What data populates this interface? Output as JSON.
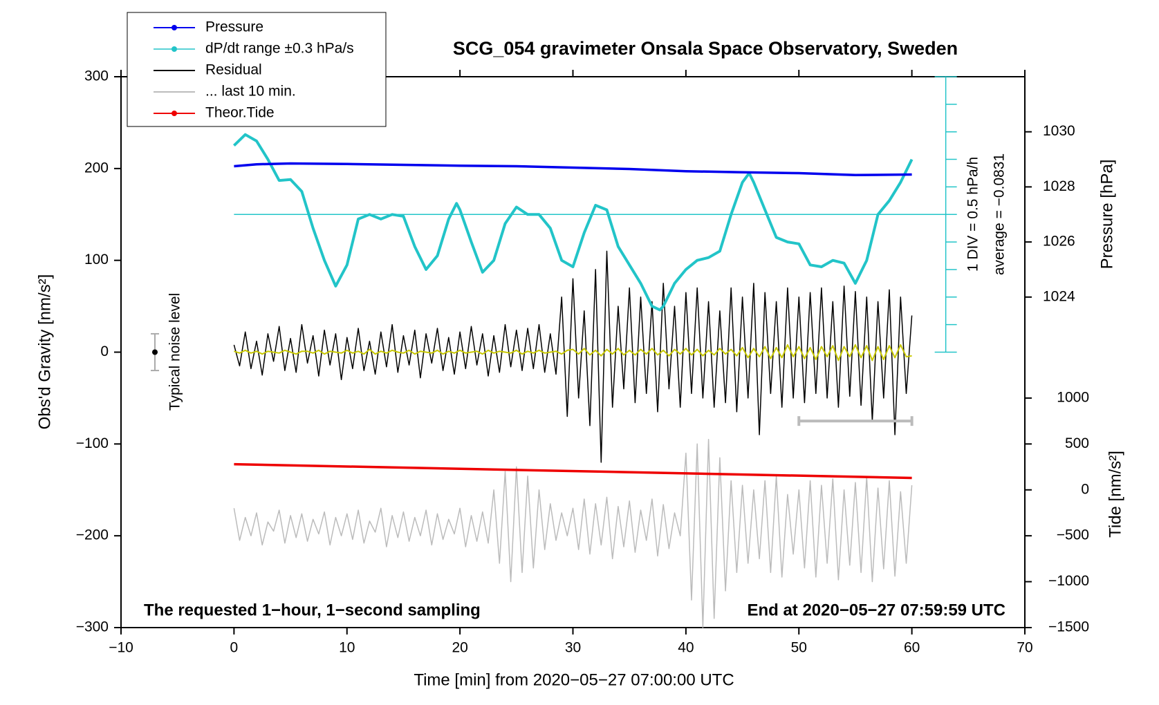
{
  "chart_data": {
    "type": "line",
    "title": "SCG_054 gravimeter Onsala Space Observatory, Sweden",
    "xlabel": "Time [min] from 2020−05−27 07:00:00 UTC",
    "ylabel": "Obs'd Gravity [nm/s²]",
    "y2label": "Pressure [hPa]",
    "y3label": "Tide [nm/s²]",
    "xlim": [
      -10,
      70
    ],
    "xticks": [
      {
        "value": -10,
        "label": "−10"
      },
      0,
      10,
      20,
      30,
      40,
      50,
      60,
      70
    ],
    "ylim": [
      -300,
      300
    ],
    "yticks": [
      {
        "value": -300,
        "label": "−300"
      },
      {
        "value": -200,
        "label": "−200"
      },
      {
        "value": -100,
        "label": "−100"
      },
      0,
      100,
      200,
      300
    ],
    "y2lim": [
      1012,
      1032
    ],
    "y2ticks": [
      1024,
      1026,
      1028,
      1030
    ],
    "y3lim": [
      -1500,
      4500
    ],
    "y3ticks": [
      {
        "value": -1500,
        "label": "−1500"
      },
      {
        "value": -1000,
        "label": "−1000"
      },
      {
        "value": -500,
        "label": "−500"
      },
      0,
      500,
      1000
    ],
    "annotations": {
      "left": "The requested 1−hour, 1−second sampling",
      "right": "End at 2020−05−27 07:59:59 UTC",
      "div": "1 DIV = 0.5 hPa/h",
      "average": "average = −0.0831",
      "noise": "Typical noise level"
    },
    "noise_level": {
      "x": -7,
      "value": 0,
      "error": 20
    },
    "last10_bar": {
      "x": [
        50,
        60
      ],
      "value": -75
    },
    "dpdt_axis": {
      "x": 63,
      "ticks": [
        0,
        30,
        60,
        90,
        120,
        150,
        180,
        210,
        240,
        270,
        300
      ],
      "average_line": 150
    },
    "legend": "top-left",
    "x": [
      0,
      0.5,
      1,
      1.5,
      2,
      2.5,
      3,
      3.5,
      4,
      4.5,
      5,
      5.5,
      6,
      6.5,
      7,
      7.5,
      8,
      8.5,
      9,
      9.5,
      10,
      10.5,
      11,
      11.5,
      12,
      12.5,
      13,
      13.5,
      14,
      14.5,
      15,
      15.5,
      16,
      16.5,
      17,
      17.5,
      18,
      18.5,
      19,
      19.5,
      20,
      20.5,
      21,
      21.5,
      22,
      22.5,
      23,
      23.5,
      24,
      24.5,
      25,
      25.5,
      26,
      26.5,
      27,
      27.5,
      28,
      28.5,
      29,
      29.5,
      30,
      30.5,
      31,
      31.5,
      32,
      32.5,
      33,
      33.5,
      34,
      34.5,
      35,
      35.5,
      36,
      36.5,
      37,
      37.5,
      38,
      38.5,
      39,
      39.5,
      40,
      40.5,
      41,
      41.5,
      42,
      42.5,
      43,
      43.5,
      44,
      44.5,
      45,
      45.5,
      46,
      46.5,
      47,
      47.5,
      48,
      48.5,
      49,
      49.5,
      50,
      50.5,
      51,
      51.5,
      52,
      52.5,
      53,
      53.5,
      54,
      54.5,
      55,
      55.5,
      56,
      56.5,
      57,
      57.5,
      58,
      58.5,
      59,
      59.5,
      60
    ],
    "series": [
      {
        "name": "Pressure",
        "color": "#0000ee",
        "axis": "y2",
        "marker": true,
        "x": [
          0,
          2,
          5,
          10,
          15,
          20,
          25,
          30,
          35,
          40,
          45,
          50,
          55,
          60
        ],
        "values": [
          1028.75,
          1028.82,
          1028.85,
          1028.83,
          1028.8,
          1028.77,
          1028.75,
          1028.7,
          1028.65,
          1028.57,
          1028.53,
          1028.5,
          1028.43,
          1028.45
        ]
      },
      {
        "name": "dP/dt range ±0.3 hPa/s",
        "color": "#22c4c8",
        "marker": true,
        "x": [
          0,
          1,
          2,
          3,
          4,
          5,
          6,
          7,
          8,
          9,
          10,
          11,
          12,
          13,
          14,
          15,
          16,
          17,
          18,
          19,
          19.7,
          20,
          21,
          22,
          23,
          24,
          25,
          26,
          27,
          28,
          29,
          30,
          31,
          32,
          33,
          34,
          35,
          36,
          37,
          37.7,
          38,
          39,
          40,
          41,
          42,
          43,
          44,
          45,
          45.6,
          46,
          47,
          48,
          49,
          50,
          51,
          52,
          53,
          54,
          55,
          56,
          57,
          58,
          59,
          60
        ],
        "values": [
          225,
          237,
          230,
          210,
          187,
          188,
          175,
          135,
          100,
          72,
          95,
          145,
          150,
          145,
          150,
          148,
          115,
          90,
          105,
          145,
          162,
          155,
          120,
          87,
          100,
          140,
          158,
          150,
          150,
          135,
          100,
          93,
          130,
          160,
          155,
          115,
          95,
          75,
          50,
          46,
          50,
          75,
          90,
          100,
          103,
          110,
          150,
          185,
          195,
          185,
          155,
          125,
          120,
          118,
          95,
          93,
          100,
          97,
          75,
          100,
          150,
          165,
          185,
          210
        ]
      },
      {
        "name": "Residual",
        "color": "#000000",
        "values": [
          8,
          -15,
          22,
          -18,
          12,
          -25,
          20,
          -10,
          28,
          -20,
          15,
          -22,
          30,
          -12,
          18,
          -26,
          24,
          -14,
          20,
          -30,
          16,
          -18,
          26,
          -20,
          12,
          -24,
          22,
          -16,
          30,
          -22,
          18,
          -14,
          24,
          -28,
          20,
          -12,
          26,
          -20,
          16,
          -24,
          22,
          -18,
          28,
          -14,
          20,
          -26,
          18,
          -22,
          30,
          -16,
          24,
          -20,
          26,
          -18,
          30,
          -22,
          20,
          -24,
          60,
          -70,
          80,
          -50,
          45,
          -80,
          90,
          -120,
          110,
          -60,
          50,
          -40,
          70,
          -55,
          60,
          -45,
          55,
          -65,
          75,
          -40,
          50,
          -60,
          65,
          -45,
          70,
          -50,
          55,
          -60,
          45,
          -55,
          70,
          -65,
          60,
          -50,
          75,
          -90,
          65,
          -45,
          55,
          -60,
          70,
          -50,
          60,
          -55,
          65,
          -45,
          70,
          -50,
          55,
          -60,
          72,
          -48,
          66,
          -58,
          60,
          -75,
          55,
          -50,
          68,
          -90,
          60,
          -45,
          40
        ]
      },
      {
        "name": "... last 10 min.",
        "color": "#bbbbbb",
        "values": [
          -170,
          -205,
          -180,
          -200,
          -175,
          -210,
          -185,
          -195,
          -172,
          -208,
          -178,
          -202,
          -176,
          -206,
          -182,
          -198,
          -174,
          -210,
          -180,
          -200,
          -176,
          -204,
          -172,
          -208,
          -184,
          -196,
          -170,
          -212,
          -178,
          -202,
          -174,
          -206,
          -180,
          -200,
          -172,
          -210,
          -176,
          -204,
          -182,
          -198,
          -170,
          -212,
          -178,
          -206,
          -174,
          -208,
          -150,
          -230,
          -130,
          -250,
          -125,
          -240,
          -135,
          -235,
          -150,
          -215,
          -165,
          -205,
          -175,
          -200,
          -170,
          -215,
          -160,
          -220,
          -165,
          -210,
          -158,
          -225,
          -168,
          -212,
          -162,
          -218,
          -172,
          -205,
          -160,
          -222,
          -166,
          -214,
          -175,
          -200,
          -110,
          -270,
          -100,
          -300,
          -95,
          -290,
          -115,
          -260,
          -140,
          -240,
          -145,
          -230,
          -150,
          -225,
          -140,
          -240,
          -135,
          -245,
          -155,
          -220,
          -150,
          -235,
          -140,
          -245,
          -145,
          -230,
          -138,
          -248,
          -150,
          -232,
          -142,
          -240,
          -136,
          -250,
          -148,
          -236,
          -140,
          -244,
          -152,
          -230,
          -145
        ]
      },
      {
        "name": "Theor.Tide",
        "color": "#ee0000",
        "axis": "y3",
        "marker": true,
        "x": [
          0,
          60
        ],
        "values": [
          280,
          130
        ]
      }
    ],
    "smoothed": {
      "color": "#c8c800",
      "values": [
        1,
        -1,
        2,
        -1,
        1,
        -2,
        1,
        0,
        -1,
        2,
        0,
        -2,
        1,
        1,
        -1,
        2,
        -2,
        1,
        0,
        -1,
        2,
        -1,
        1,
        -2,
        3,
        -2,
        1,
        -1,
        2,
        0,
        -1,
        2,
        -2,
        1,
        0,
        -1,
        2,
        -2,
        1,
        -1,
        2,
        -1,
        0,
        1,
        -2,
        2,
        -1,
        1,
        0,
        -1,
        2,
        -2,
        1,
        -1,
        2,
        -1,
        0,
        1,
        -2,
        2,
        3,
        -2,
        4,
        -3,
        2,
        -4,
        3,
        -2,
        4,
        -3,
        2,
        -3,
        3,
        -2,
        4,
        -3,
        2,
        -4,
        3,
        -2,
        4,
        -3,
        3,
        -4,
        2,
        -3,
        4,
        -2,
        3,
        -4,
        5,
        -6,
        4,
        -5,
        6,
        -7,
        5,
        -6,
        8,
        -5,
        6,
        -7,
        5,
        -8,
        6,
        -5,
        7,
        -9,
        6,
        -5,
        8,
        -6,
        7,
        -9,
        6,
        -8,
        7,
        -6,
        8,
        -5,
        -4
      ]
    }
  }
}
